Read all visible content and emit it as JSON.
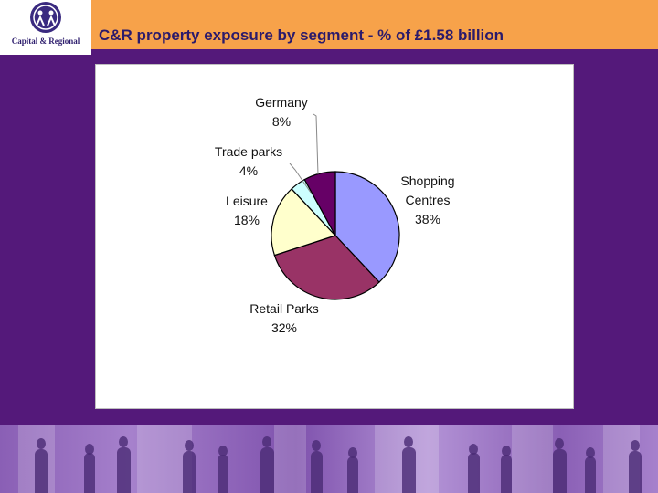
{
  "header": {
    "title": "C&R property exposure by segment - % of £1.58 billion",
    "logo_text": "Capital & Regional"
  },
  "colors": {
    "background": "#54197a",
    "title_bar": "#f7a24a",
    "title_text": "#2b1a6b"
  },
  "chart_data": {
    "type": "pie",
    "title": "C&R property exposure by segment - % of £1.58 billion",
    "slices": [
      {
        "name": "Shopping Centres",
        "label_lines": [
          "Shopping",
          "Centres"
        ],
        "value": 38,
        "value_label": "38%",
        "color": "#9999ff"
      },
      {
        "name": "Retail Parks",
        "label_lines": [
          "Retail Parks"
        ],
        "value": 32,
        "value_label": "32%",
        "color": "#993366"
      },
      {
        "name": "Leisure",
        "label_lines": [
          "Leisure"
        ],
        "value": 18,
        "value_label": "18%",
        "color": "#ffffcc"
      },
      {
        "name": "Trade parks",
        "label_lines": [
          "Trade parks"
        ],
        "value": 4,
        "value_label": "4%",
        "color": "#ccffff"
      },
      {
        "name": "Germany",
        "label_lines": [
          "Germany"
        ],
        "value": 8,
        "value_label": "8%",
        "color": "#660066"
      }
    ]
  }
}
